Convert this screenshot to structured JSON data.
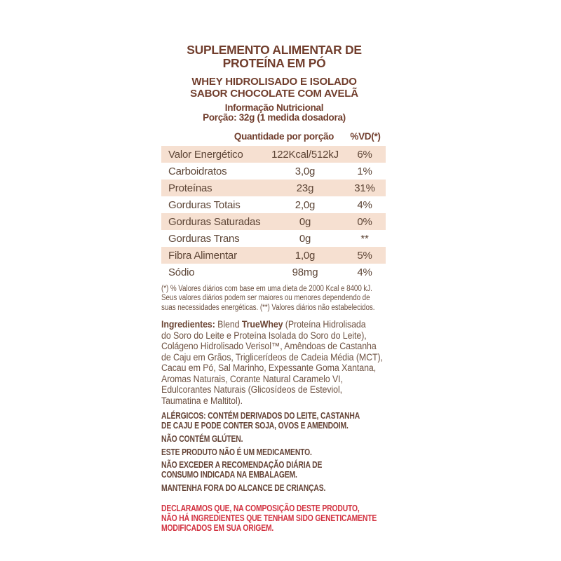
{
  "colors": {
    "heading_brown": "#713E2D",
    "table_text_brown": "#5D4536",
    "paragraph_brown": "#6E5242",
    "warning_brown": "#654437",
    "row_shade": "#F6E0D1",
    "declaration_red": "#D23240",
    "background": "#FFFFFF"
  },
  "header": {
    "title_line1": "SUPLEMENTO ALIMENTAR DE",
    "title_line2": "PROTEÍNA EM PÓ",
    "subtitle_line1": "WHEY HIDROLISADO E ISOLADO",
    "subtitle_line2": "SABOR CHOCOLATE COM AVELÃ",
    "info_title": "Informação Nutricional",
    "serving": "Porção: 32g (1 medida dosadora)"
  },
  "table": {
    "col_amount": "Quantidade por porção",
    "col_dv": "%VD(*)",
    "rows": [
      {
        "label": "Valor Energético",
        "amount": "122Kcal/512kJ",
        "dv": "6%"
      },
      {
        "label": "Carboidratos",
        "amount": "3,0g",
        "dv": "1%"
      },
      {
        "label": "Proteínas",
        "amount": "23g",
        "dv": "31%"
      },
      {
        "label": "Gorduras Totais",
        "amount": "2,0g",
        "dv": "4%"
      },
      {
        "label": "Gorduras Saturadas",
        "amount": "0g",
        "dv": "0%"
      },
      {
        "label": "Gorduras Trans",
        "amount": "0g",
        "dv": "**"
      },
      {
        "label": "Fibra Alimentar",
        "amount": "1,0g",
        "dv": "5%"
      },
      {
        "label": "Sódio",
        "amount": "98mg",
        "dv": "4%"
      }
    ]
  },
  "footnote": "(*) % Valores diários com base em uma dieta de 2000 Kcal e 8400 kJ.\nSeus valores diários podem ser maiores ou menores dependendo de\nsuas necessidades energéticas. (**) Valores diários não estabelecidos.",
  "ingredients": {
    "label": "Ingredientes:",
    "pre_bold": " Blend ",
    "brand": "TrueWhey",
    "rest": " (Proteína Hidrolisada\ndo Soro do Leite e Proteína Isolada do Soro do Leite),\nColágeno Hidrolisado Verisol™, Amêndoas de Castanha\nde Caju em Grãos, Triglicerídeos de Cadeia Média (MCT),\nCacau em Pó, Sal Marinho, Expessante Goma Xantana,\nAromas Naturais, Corante Natural Caramelo VI,\nEdulcorantes Naturais (Glicosídeos de Esteviol,\nTaumatina e Maltitol)."
  },
  "warnings": [
    "ALÉRGICOS: CONTÉM DERIVADOS DO LEITE, CASTANHA\nDE CAJU E PODE CONTER SOJA, OVOS E AMENDOIM.",
    "NÃO CONTÉM GLÚTEN.",
    "ESTE PRODUTO NÃO É UM MEDICAMENTO.",
    "NÃO EXCEDER A RECOMENDAÇÃO DIÁRIA DE\nCONSUMO INDICADA NA EMBALAGEM.",
    "MANTENHA FORA DO ALCANCE DE CRIANÇAS."
  ],
  "gmo_declaration": "DECLARAMOS QUE, NA COMPOSIÇÃO DESTE PRODUTO,\nNÃO HÁ INGREDIENTES QUE TENHAM SIDO GENETICAMENTE\nMODIFICADOS EM SUA ORIGEM."
}
